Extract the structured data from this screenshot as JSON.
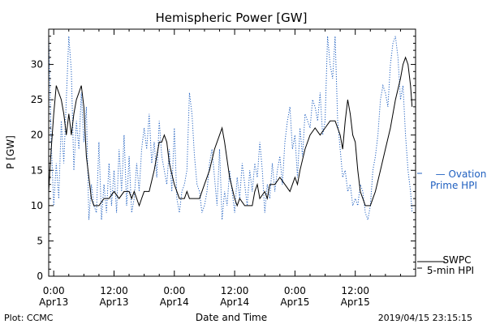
{
  "chart_data": {
    "type": "line",
    "title": "Hemispheric Power [GW]",
    "ylabel": "P [GW]",
    "xlabel": "Date and Time",
    "ylim": [
      0,
      35
    ],
    "y_ticks": [
      0,
      5,
      10,
      15,
      20,
      25,
      30
    ],
    "x_range_hours": [
      -1,
      72
    ],
    "x_ticks": [
      {
        "hours": 0,
        "time": "0:00",
        "date": "Apr13"
      },
      {
        "hours": 12,
        "time": "12:00",
        "date": "Apr13"
      },
      {
        "hours": 24,
        "time": "0:00",
        "date": "Apr14"
      },
      {
        "hours": 36,
        "time": "12:00",
        "date": "Apr14"
      },
      {
        "hours": 48,
        "time": "0:00",
        "date": "Apr15"
      },
      {
        "hours": 60,
        "time": "12:00",
        "date": "Apr15"
      }
    ],
    "series": [
      {
        "name": "SWPC 5-min HPI",
        "color": "#000000",
        "style": "solid",
        "points": [
          [
            -1.0,
            12
          ],
          [
            -0.5,
            18
          ],
          [
            0,
            23
          ],
          [
            0.5,
            27
          ],
          [
            1,
            26
          ],
          [
            1.5,
            25
          ],
          [
            2,
            23
          ],
          [
            2.5,
            20
          ],
          [
            3,
            23
          ],
          [
            3.5,
            20
          ],
          [
            4,
            23
          ],
          [
            4.5,
            25
          ],
          [
            5,
            26
          ],
          [
            5.5,
            27
          ],
          [
            6,
            24
          ],
          [
            6.5,
            17
          ],
          [
            7,
            14
          ],
          [
            7.5,
            11
          ],
          [
            8,
            10
          ],
          [
            9,
            10
          ],
          [
            10,
            11
          ],
          [
            11,
            11
          ],
          [
            12,
            12
          ],
          [
            13,
            11
          ],
          [
            14,
            12
          ],
          [
            15,
            12
          ],
          [
            15.5,
            11
          ],
          [
            16,
            12
          ],
          [
            16.5,
            11
          ],
          [
            17,
            10
          ],
          [
            17.5,
            11
          ],
          [
            18,
            12
          ],
          [
            19,
            12
          ],
          [
            20,
            15
          ],
          [
            20.5,
            17
          ],
          [
            21,
            19
          ],
          [
            21.5,
            19
          ],
          [
            22,
            20
          ],
          [
            22.5,
            19
          ],
          [
            23,
            16
          ],
          [
            24,
            13
          ],
          [
            25,
            11
          ],
          [
            26,
            11
          ],
          [
            26.5,
            12
          ],
          [
            27,
            11
          ],
          [
            28,
            11
          ],
          [
            29,
            11
          ],
          [
            30,
            13
          ],
          [
            31,
            15
          ],
          [
            32,
            18
          ],
          [
            33,
            20
          ],
          [
            33.5,
            21
          ],
          [
            34,
            19
          ],
          [
            35,
            14
          ],
          [
            36,
            11
          ],
          [
            36.5,
            10
          ],
          [
            37,
            11
          ],
          [
            38,
            10
          ],
          [
            39,
            10
          ],
          [
            39.5,
            10
          ],
          [
            40,
            12
          ],
          [
            40.5,
            13
          ],
          [
            41,
            11
          ],
          [
            42,
            12
          ],
          [
            42.5,
            11
          ],
          [
            43,
            13
          ],
          [
            44,
            13
          ],
          [
            45,
            14
          ],
          [
            46,
            13
          ],
          [
            47,
            12
          ],
          [
            47.5,
            13
          ],
          [
            48,
            14
          ],
          [
            48.5,
            13
          ],
          [
            49,
            15
          ],
          [
            50,
            18
          ],
          [
            51,
            20
          ],
          [
            52,
            21
          ],
          [
            53,
            20
          ],
          [
            54,
            21
          ],
          [
            55,
            22
          ],
          [
            56,
            22
          ],
          [
            56.5,
            21
          ],
          [
            57,
            20
          ],
          [
            57.5,
            18
          ],
          [
            58,
            22
          ],
          [
            58.5,
            25
          ],
          [
            59,
            23
          ],
          [
            59.5,
            20
          ],
          [
            60,
            19
          ],
          [
            60.5,
            15
          ],
          [
            61,
            12
          ],
          [
            61.5,
            11
          ],
          [
            62,
            10
          ],
          [
            63,
            10
          ],
          [
            63.5,
            11
          ],
          [
            64,
            12
          ],
          [
            65,
            15
          ],
          [
            66,
            18
          ],
          [
            67,
            21
          ],
          [
            68,
            25
          ],
          [
            69,
            28
          ],
          [
            69.5,
            30
          ],
          [
            70,
            31
          ],
          [
            70.5,
            30
          ],
          [
            71,
            27
          ],
          [
            71.3,
            24
          ]
        ]
      },
      {
        "name": "Ovation Prime HPI",
        "color": "#2060c0",
        "style": "dotted",
        "points": [
          [
            -1.0,
            34
          ],
          [
            -0.5,
            19
          ],
          [
            0,
            10
          ],
          [
            0.5,
            16
          ],
          [
            1,
            11
          ],
          [
            1.5,
            22
          ],
          [
            2,
            16
          ],
          [
            2.5,
            25
          ],
          [
            3,
            34
          ],
          [
            3.5,
            29
          ],
          [
            4,
            15
          ],
          [
            4.5,
            22
          ],
          [
            5,
            18
          ],
          [
            5.5,
            26
          ],
          [
            6,
            19
          ],
          [
            6.5,
            24
          ],
          [
            7,
            8
          ],
          [
            7.5,
            13
          ],
          [
            8,
            10
          ],
          [
            8.5,
            9
          ],
          [
            9,
            19
          ],
          [
            9.5,
            8
          ],
          [
            10,
            13
          ],
          [
            10.5,
            9
          ],
          [
            11,
            16
          ],
          [
            11.5,
            10
          ],
          [
            12,
            15
          ],
          [
            12.5,
            9
          ],
          [
            13,
            18
          ],
          [
            13.5,
            12
          ],
          [
            14,
            20
          ],
          [
            14.5,
            10
          ],
          [
            15,
            17
          ],
          [
            15.5,
            9
          ],
          [
            16,
            11
          ],
          [
            16.5,
            16
          ],
          [
            17,
            12
          ],
          [
            17.5,
            18
          ],
          [
            18,
            21
          ],
          [
            18.5,
            18
          ],
          [
            19,
            23
          ],
          [
            19.5,
            16
          ],
          [
            20,
            19
          ],
          [
            20.5,
            14
          ],
          [
            21,
            22
          ],
          [
            21.5,
            17
          ],
          [
            22,
            15
          ],
          [
            22.5,
            13
          ],
          [
            23,
            18
          ],
          [
            23.5,
            12
          ],
          [
            24,
            21
          ],
          [
            24.5,
            11
          ],
          [
            25,
            9
          ],
          [
            25.5,
            12
          ],
          [
            26,
            13
          ],
          [
            26.5,
            15
          ],
          [
            27,
            26
          ],
          [
            27.5,
            23
          ],
          [
            28,
            17
          ],
          [
            28.5,
            13
          ],
          [
            29,
            12
          ],
          [
            29.5,
            9
          ],
          [
            30,
            10
          ],
          [
            30.5,
            12
          ],
          [
            31,
            16
          ],
          [
            31.5,
            18
          ],
          [
            32,
            14
          ],
          [
            32.5,
            10
          ],
          [
            33,
            18
          ],
          [
            33.5,
            8
          ],
          [
            34,
            12
          ],
          [
            34.5,
            10
          ],
          [
            35,
            15
          ],
          [
            35.5,
            12
          ],
          [
            36,
            9
          ],
          [
            36.5,
            14
          ],
          [
            37,
            11
          ],
          [
            37.5,
            16
          ],
          [
            38,
            13
          ],
          [
            38.5,
            10
          ],
          [
            39,
            15
          ],
          [
            39.5,
            12
          ],
          [
            40,
            16
          ],
          [
            40.5,
            14
          ],
          [
            41,
            19
          ],
          [
            41.5,
            15
          ],
          [
            42,
            9
          ],
          [
            42.5,
            13
          ],
          [
            43,
            11
          ],
          [
            43.5,
            16
          ],
          [
            44,
            12
          ],
          [
            44.5,
            15
          ],
          [
            45,
            17
          ],
          [
            45.5,
            13
          ],
          [
            46,
            19
          ],
          [
            46.5,
            22
          ],
          [
            47,
            24
          ],
          [
            47.5,
            18
          ],
          [
            48,
            20
          ],
          [
            48.5,
            14
          ],
          [
            49,
            21
          ],
          [
            49.5,
            17
          ],
          [
            50,
            23
          ],
          [
            50.5,
            22
          ],
          [
            51,
            21
          ],
          [
            51.5,
            25
          ],
          [
            52,
            24
          ],
          [
            52.5,
            22
          ],
          [
            53,
            26
          ],
          [
            53.5,
            20
          ],
          [
            54,
            22
          ],
          [
            54.5,
            34
          ],
          [
            55,
            30
          ],
          [
            55.5,
            28
          ],
          [
            56,
            34
          ],
          [
            56.5,
            22
          ],
          [
            57,
            18
          ],
          [
            57.5,
            14
          ],
          [
            58,
            15
          ],
          [
            58.5,
            12
          ],
          [
            59,
            13
          ],
          [
            59.5,
            10
          ],
          [
            60,
            11
          ],
          [
            60.5,
            10
          ],
          [
            61,
            13
          ],
          [
            61.5,
            12
          ],
          [
            62,
            9
          ],
          [
            62.5,
            8
          ],
          [
            63,
            10
          ],
          [
            63.5,
            15
          ],
          [
            64,
            17
          ],
          [
            64.5,
            20
          ],
          [
            65,
            25
          ],
          [
            65.5,
            27
          ],
          [
            66,
            26
          ],
          [
            66.5,
            24
          ],
          [
            67,
            30
          ],
          [
            67.5,
            33
          ],
          [
            68,
            34
          ],
          [
            68.5,
            31
          ],
          [
            69,
            25
          ],
          [
            69.5,
            27
          ],
          [
            70,
            20
          ],
          [
            70.5,
            15
          ],
          [
            71,
            12
          ],
          [
            71.3,
            9
          ]
        ]
      }
    ],
    "legend": {
      "ovation_label_line1": "— Ovation",
      "ovation_label_line2": "Prime HPI",
      "swpc_label_line1": "SWPC",
      "swpc_label_line2": "5-min HPI"
    }
  },
  "footer": {
    "left": "Plot: CCMC",
    "right": "2019/04/15 23:15:15"
  }
}
